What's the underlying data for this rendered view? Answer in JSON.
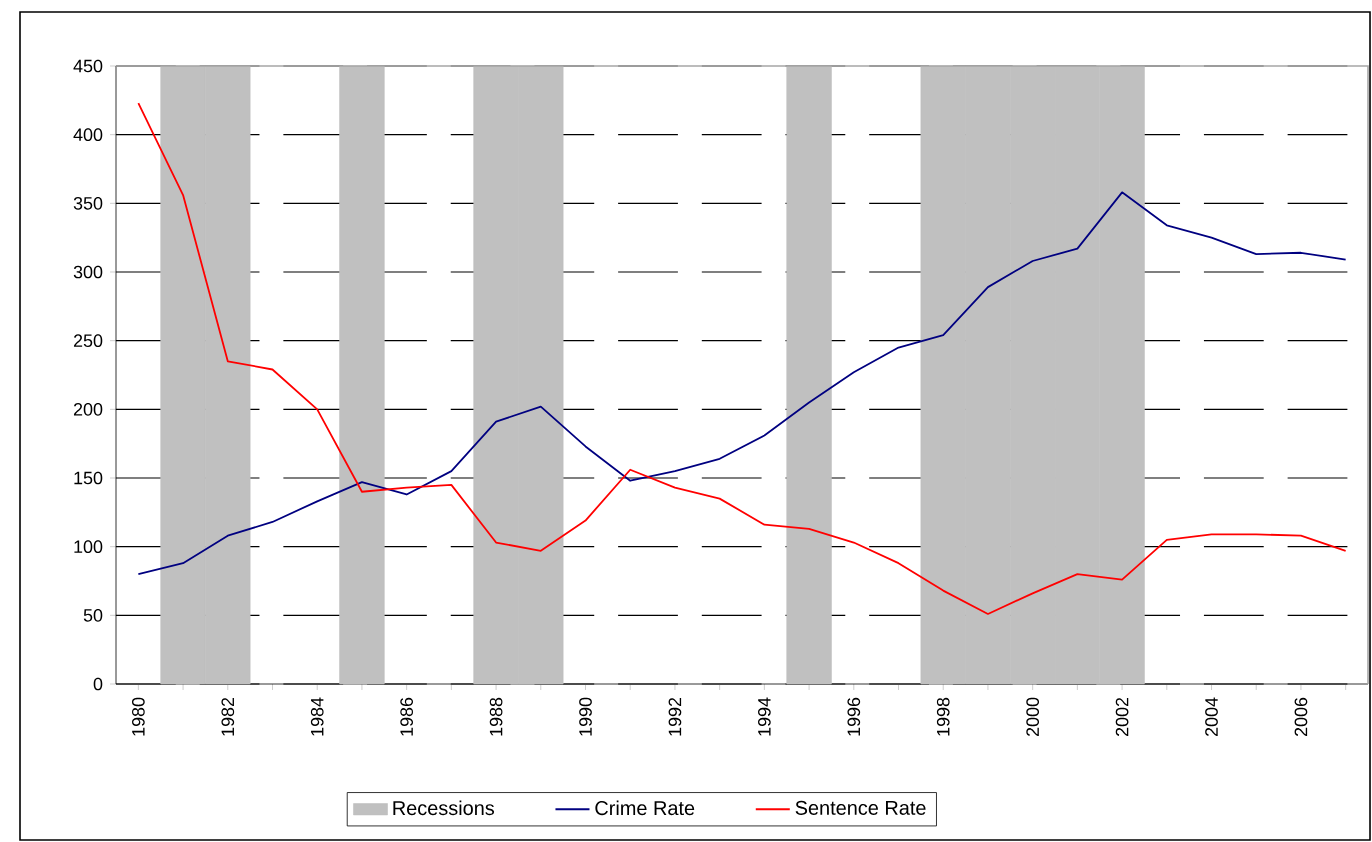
{
  "chart_data": {
    "type": "line",
    "categories": [
      "1980",
      null,
      "1982",
      null,
      "1984",
      null,
      "1986",
      null,
      "1988",
      null,
      "1990",
      null,
      "1992",
      null,
      "1994",
      null,
      "1996",
      null,
      "1998",
      null,
      "2000",
      null,
      "2002",
      null,
      "2004",
      null,
      "2006",
      null
    ],
    "series": [
      {
        "name": "Recessions",
        "type": "bar",
        "color": "#c0c0c0",
        "values": [
          null,
          450,
          450,
          null,
          null,
          450,
          null,
          null,
          450,
          450,
          null,
          null,
          null,
          null,
          null,
          450,
          null,
          null,
          450,
          450,
          450,
          450,
          450,
          null,
          null,
          null,
          null,
          null
        ]
      },
      {
        "name": "Crime Rate",
        "color": "#000080",
        "values": [
          80,
          88,
          108,
          118,
          133,
          147,
          138,
          155,
          191,
          202,
          173,
          148,
          155,
          164,
          181,
          205,
          227,
          245,
          254,
          289,
          308,
          317,
          358,
          334,
          325,
          313,
          314,
          309
        ]
      },
      {
        "name": "Sentence Rate",
        "color": "#ff0000",
        "values": [
          423,
          356,
          235,
          229,
          200,
          140,
          143,
          145,
          103,
          97,
          119,
          156,
          143,
          135,
          116,
          113,
          103,
          88,
          68,
          51,
          66,
          80,
          76,
          105,
          109,
          109,
          108,
          97
        ]
      }
    ],
    "ylim": [
      0,
      450
    ],
    "yticks": [
      0,
      50,
      100,
      150,
      200,
      250,
      300,
      350,
      400,
      450
    ],
    "grid": "y",
    "legend": "bottom",
    "marker": "none",
    "line_style": "solid"
  }
}
